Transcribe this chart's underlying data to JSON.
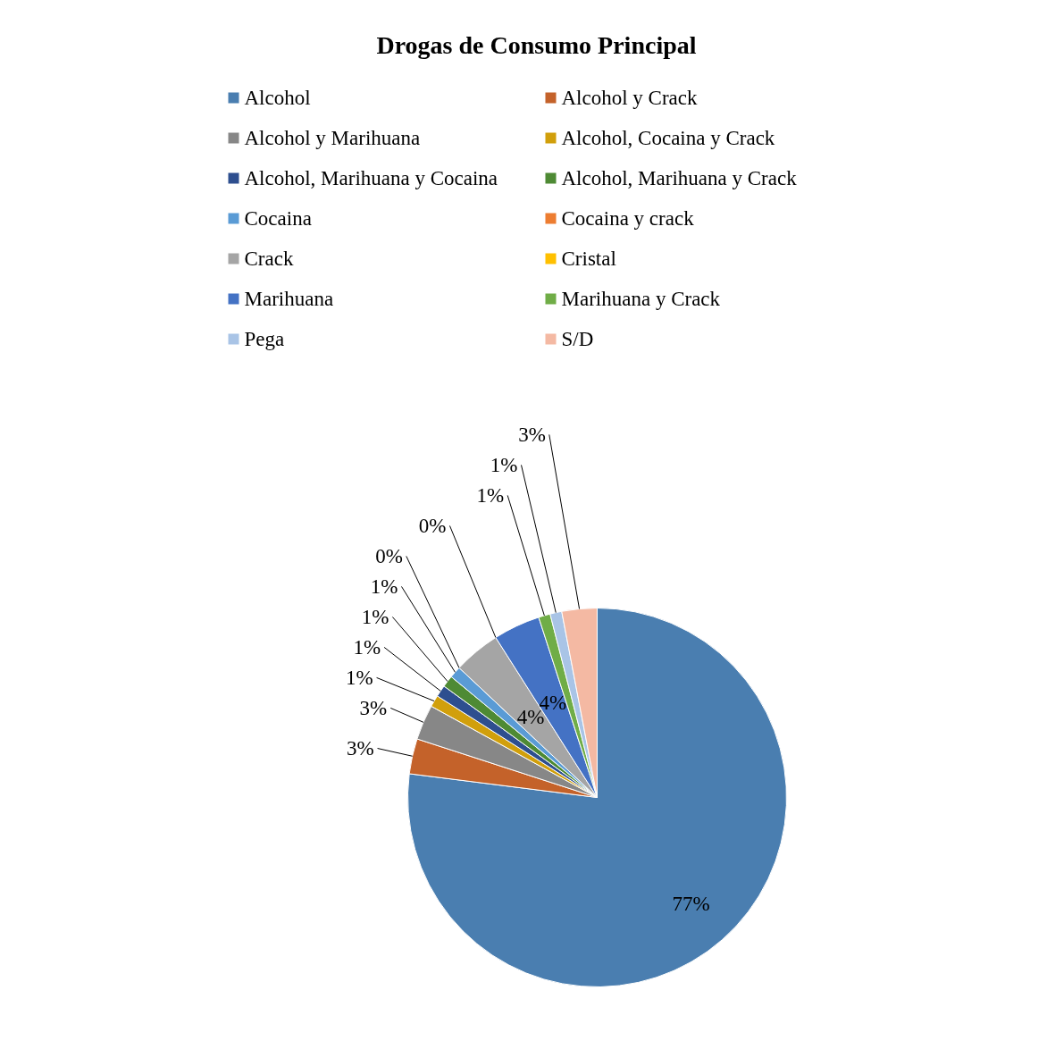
{
  "chart_data": {
    "type": "pie",
    "title": "Drogas de Consumo Principal",
    "categories": [
      "Alcohol",
      "Alcohol y Crack",
      "Alcohol y Marihuana",
      "Alcohol, Cocaina y Crack",
      "Alcohol, Marihuana y Cocaina",
      "Alcohol, Marihuana y Crack",
      "Cocaina",
      "Cocaina y crack",
      "Crack",
      "Cristal",
      "Marihuana",
      "Marihuana y Crack",
      "Pega",
      "S/D"
    ],
    "values": [
      77,
      3,
      3,
      1,
      1,
      1,
      1,
      0,
      4,
      0,
      4,
      1,
      1,
      3
    ],
    "value_labels": [
      "77%",
      "3%",
      "3%",
      "1%",
      "1%",
      "1%",
      "1%",
      "0%",
      "4%",
      "0%",
      "4%",
      "1%",
      "1%",
      "3%"
    ],
    "colors": [
      "#4a7eb0",
      "#c4622a",
      "#878787",
      "#d19f0b",
      "#2e4f8f",
      "#4e8a34",
      "#5a9bd5",
      "#ed7d31",
      "#a5a5a5",
      "#ffc000",
      "#4472c4",
      "#70ad47",
      "#a9c4e6",
      "#f4b9a3"
    ],
    "legend": "top"
  }
}
